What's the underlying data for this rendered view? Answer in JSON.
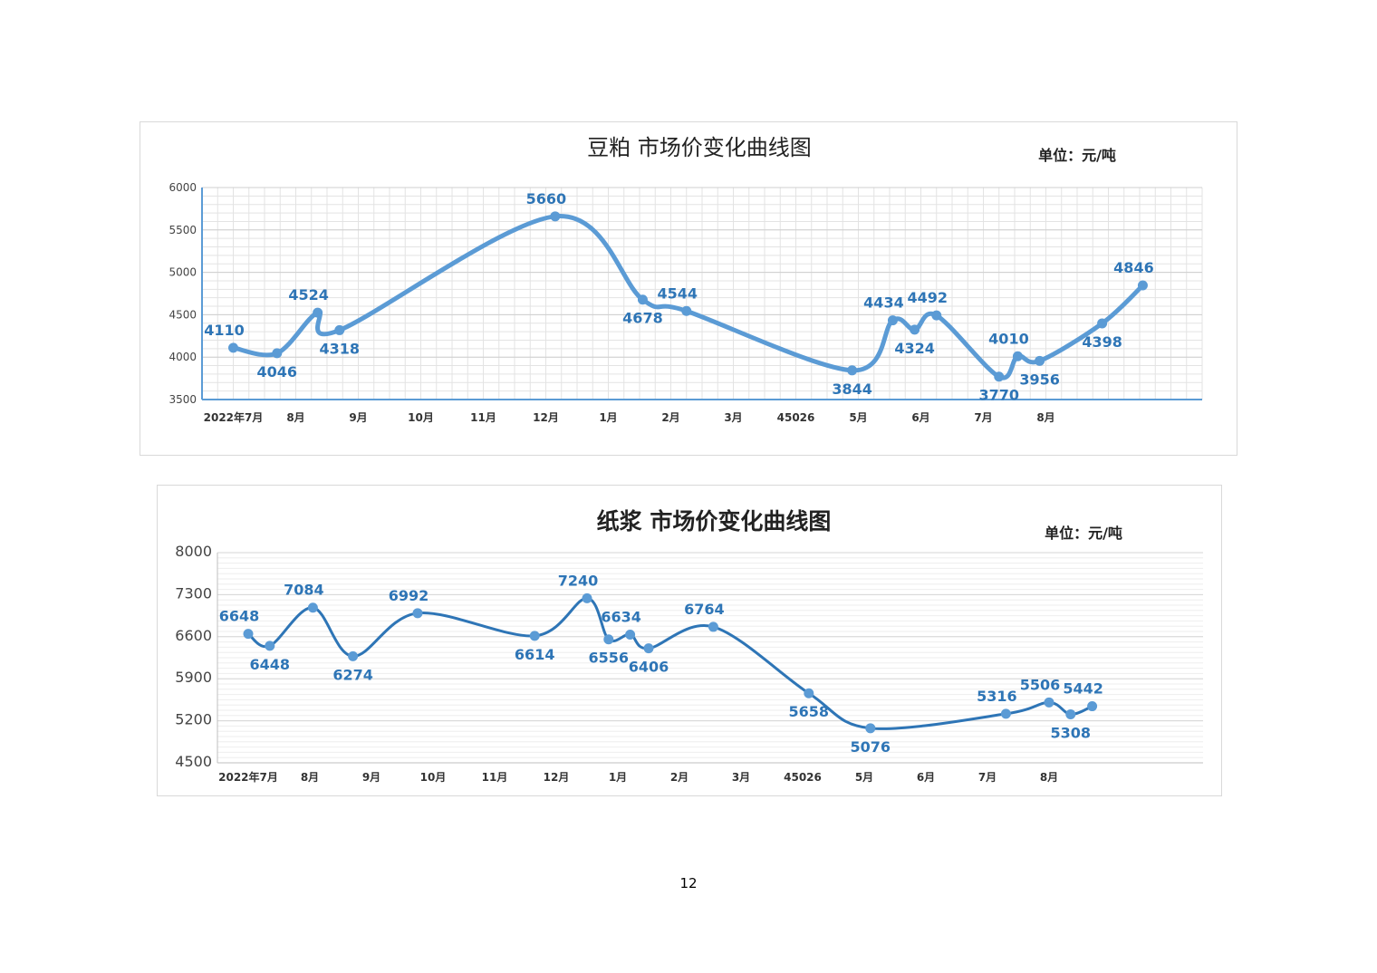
{
  "page": {
    "number": "12"
  },
  "chart_data": [
    {
      "type": "line",
      "title": "豆粕 市场价变化曲线图",
      "unit": "单位：元/吨",
      "ylim": [
        3500,
        6000
      ],
      "yticks": [
        3500,
        4000,
        4500,
        5000,
        5500,
        6000
      ],
      "grid": true,
      "xlabels": [
        "2022年7月",
        "8月",
        "9月",
        "10月",
        "11月",
        "12月",
        "1月",
        "2月",
        "3月",
        "45026",
        "5月",
        "6月",
        "7月",
        "8月"
      ],
      "color": "#5b9bd5",
      "series": [
        {
          "points": [
            {
              "x": 0.5,
              "y": 4110,
              "label": "4110"
            },
            {
              "x": 1.2,
              "y": 4046,
              "label": "4046"
            },
            {
              "x": 1.85,
              "y": 4524,
              "label": "4524"
            },
            {
              "x": 2.2,
              "y": 4318,
              "label": "4318"
            },
            {
              "x": 5.65,
              "y": 5660,
              "label": "5660"
            },
            {
              "x": 7.05,
              "y": 4678,
              "label": "4678"
            },
            {
              "x": 7.75,
              "y": 4544,
              "label": "4544"
            },
            {
              "x": 10.4,
              "y": 3844,
              "label": "3844"
            },
            {
              "x": 11.05,
              "y": 4434,
              "label": "4434"
            },
            {
              "x": 11.4,
              "y": 4324,
              "label": "4324"
            },
            {
              "x": 11.75,
              "y": 4492,
              "label": "4492"
            },
            {
              "x": 12.75,
              "y": 3770,
              "label": "3770"
            },
            {
              "x": 13.05,
              "y": 4010,
              "label": "4010"
            },
            {
              "x": 13.4,
              "y": 3956,
              "label": "3956"
            },
            {
              "x": 14.4,
              "y": 4398,
              "label": "4398"
            },
            {
              "x": 15.05,
              "y": 4846,
              "label": "4846"
            }
          ]
        }
      ]
    },
    {
      "type": "line",
      "title": "纸浆 市场价变化曲线图",
      "unit": "单位：元/吨",
      "ylim": [
        4500,
        8000
      ],
      "yticks": [
        4500,
        5200,
        5900,
        6600,
        7300,
        8000
      ],
      "grid": true,
      "xlabels": [
        "2022年7月",
        "8月",
        "9月",
        "10月",
        "11月",
        "12月",
        "1月",
        "2月",
        "3月",
        "45026",
        "5月",
        "6月",
        "7月",
        "8月"
      ],
      "color": "#2e75b6",
      "series": [
        {
          "points": [
            {
              "x": 0.5,
              "y": 6648,
              "label": "6648"
            },
            {
              "x": 0.85,
              "y": 6448,
              "label": "6448"
            },
            {
              "x": 1.55,
              "y": 7084,
              "label": "7084"
            },
            {
              "x": 2.2,
              "y": 6274,
              "label": "6274"
            },
            {
              "x": 3.25,
              "y": 6992,
              "label": "6992"
            },
            {
              "x": 5.15,
              "y": 6614,
              "label": "6614"
            },
            {
              "x": 6.0,
              "y": 7240,
              "label": "7240"
            },
            {
              "x": 6.35,
              "y": 6556,
              "label": "6556"
            },
            {
              "x": 6.7,
              "y": 6634,
              "label": "6634"
            },
            {
              "x": 7.0,
              "y": 6406,
              "label": "6406"
            },
            {
              "x": 8.05,
              "y": 6764,
              "label": "6764"
            },
            {
              "x": 9.6,
              "y": 5658,
              "label": "5658"
            },
            {
              "x": 10.6,
              "y": 5076,
              "label": "5076"
            },
            {
              "x": 12.8,
              "y": 5316,
              "label": "5316"
            },
            {
              "x": 13.5,
              "y": 5506,
              "label": "5506"
            },
            {
              "x": 13.85,
              "y": 5308,
              "label": "5308"
            },
            {
              "x": 14.2,
              "y": 5442,
              "label": "5442"
            }
          ]
        }
      ]
    }
  ]
}
